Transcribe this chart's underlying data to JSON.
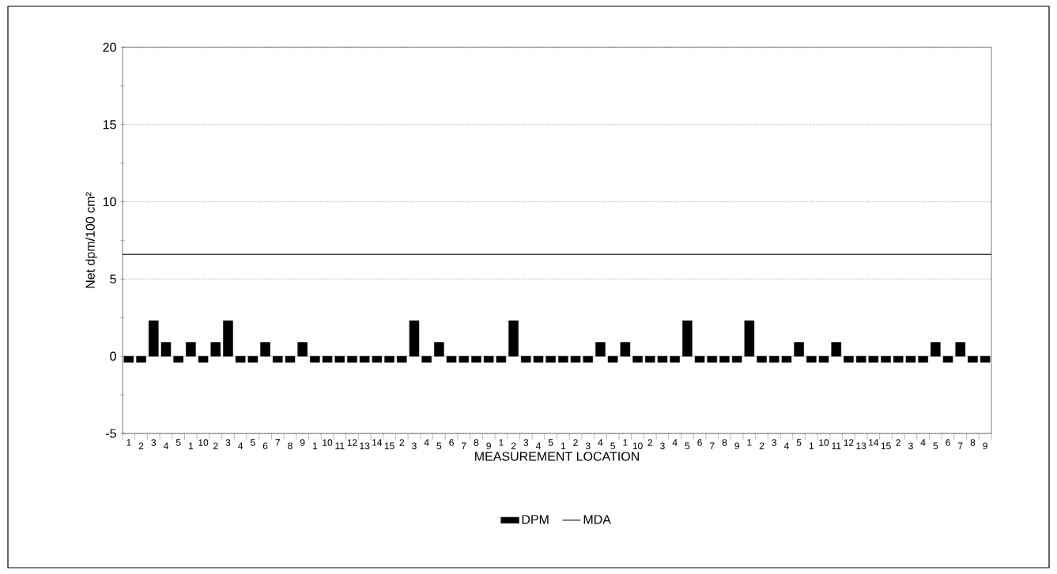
{
  "chart_data": {
    "type": "bar",
    "xlabel": "MEASUREMENT LOCATION",
    "ylabel": "Net dpm/100 cm²",
    "categories": [
      "1",
      "2",
      "3",
      "4",
      "5",
      "1",
      "10",
      "2",
      "3",
      "4",
      "5",
      "6",
      "7",
      "8",
      "9",
      "1",
      "10",
      "11",
      "12",
      "13",
      "14",
      "15",
      "2",
      "3",
      "4",
      "5",
      "6",
      "7",
      "8",
      "9",
      "1",
      "2",
      "3",
      "4",
      "5",
      "1",
      "2",
      "3",
      "4",
      "5",
      "1",
      "10",
      "2",
      "3",
      "4",
      "5",
      "6",
      "7",
      "8",
      "9",
      "1",
      "2",
      "3",
      "4",
      "5",
      "1",
      "10",
      "11",
      "12",
      "13",
      "14",
      "15",
      "2",
      "3",
      "4",
      "5",
      "6",
      "7",
      "8",
      "9"
    ],
    "series": [
      {
        "name": "DPM",
        "color": "#000000",
        "values": [
          -0.4,
          -0.4,
          2.3,
          0.9,
          -0.4,
          0.9,
          -0.4,
          0.9,
          2.3,
          -0.4,
          -0.4,
          0.9,
          -0.4,
          -0.4,
          0.9,
          -0.4,
          -0.4,
          -0.4,
          -0.4,
          -0.4,
          -0.4,
          -0.4,
          -0.4,
          2.3,
          -0.4,
          0.9,
          -0.4,
          -0.4,
          -0.4,
          -0.4,
          -0.4,
          2.3,
          -0.4,
          -0.4,
          -0.4,
          -0.4,
          -0.4,
          -0.4,
          0.9,
          -0.4,
          0.9,
          -0.4,
          -0.4,
          -0.4,
          -0.4,
          2.3,
          -0.4,
          -0.4,
          -0.4,
          -0.4,
          2.3,
          -0.4,
          -0.4,
          -0.4,
          0.9,
          -0.4,
          -0.4,
          0.9,
          -0.4,
          -0.4,
          -0.4,
          -0.4,
          -0.4,
          -0.4,
          -0.4,
          0.9,
          -0.4,
          0.9,
          -0.4,
          -0.4
        ]
      }
    ],
    "ref_lines": [
      {
        "axis": "y",
        "value": 6.6,
        "label": "MDA",
        "color": "#000000",
        "line_style": "solid"
      }
    ],
    "ylim": [
      -5,
      20
    ],
    "yticks": [
      -5,
      {
        "value": -2.5,
        "label": null
      },
      0,
      {
        "value": 2.5,
        "label": null
      },
      5,
      {
        "value": 7.5,
        "label": null
      },
      10,
      {
        "value": 12.5,
        "label": null
      },
      15,
      {
        "value": 17.5,
        "label": null
      },
      20
    ],
    "grid": "y",
    "legend": "bottom"
  }
}
